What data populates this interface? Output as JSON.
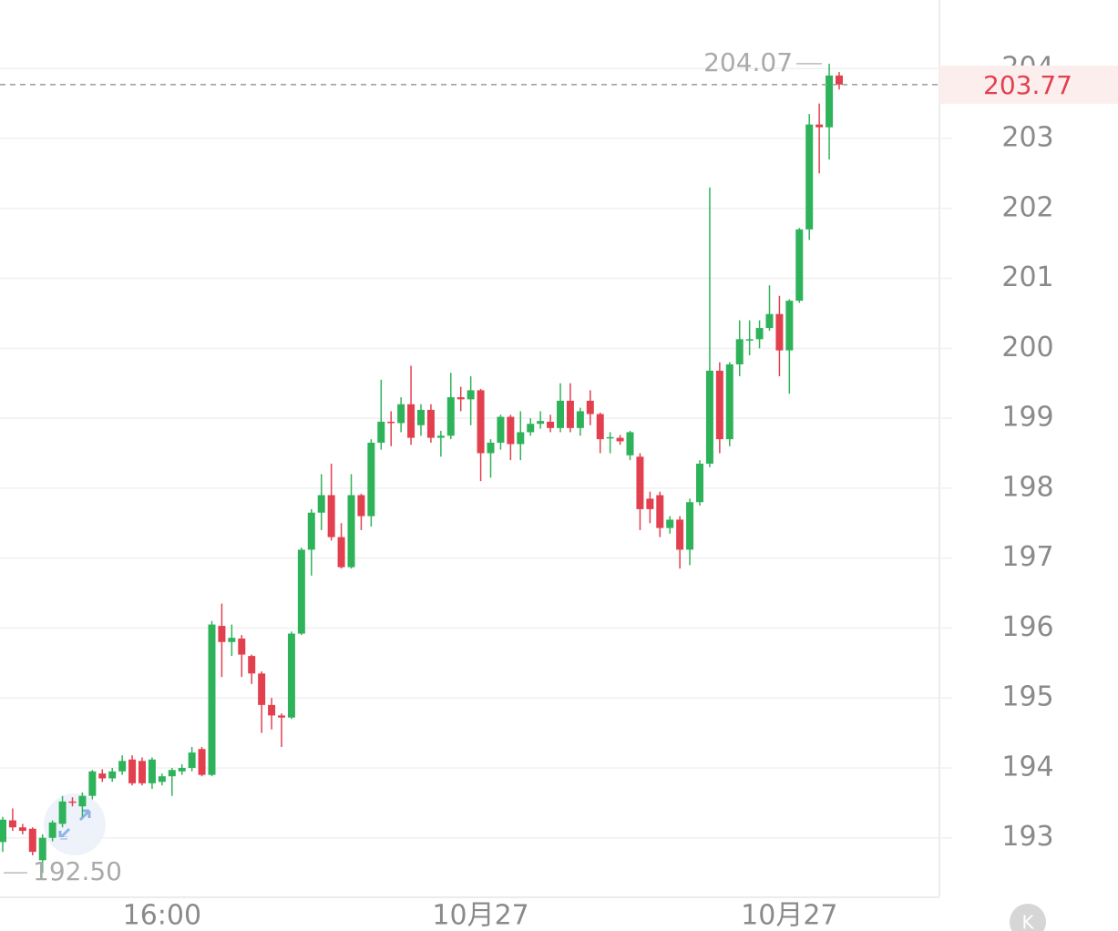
{
  "chart_data": {
    "type": "candlestick",
    "categories": [
      null,
      null,
      null,
      null,
      null,
      null,
      null,
      null,
      null,
      null,
      null,
      null,
      null,
      null,
      null,
      null,
      "16:00",
      null,
      null,
      null,
      null,
      null,
      null,
      null,
      null,
      null,
      null,
      null,
      null,
      null,
      null,
      null,
      null,
      null,
      null,
      null,
      null,
      null,
      null,
      null,
      null,
      null,
      null,
      null,
      null,
      null,
      null,
      null,
      "10月27",
      null,
      null,
      null,
      null,
      null,
      null,
      null,
      null,
      null,
      null,
      null,
      null,
      null,
      null,
      null,
      null,
      null,
      null,
      null,
      null,
      null,
      null,
      null,
      null,
      null,
      null,
      null,
      null,
      null,
      null,
      "10月27",
      null,
      null,
      null,
      null,
      null
    ],
    "open": [
      192.94,
      193.25,
      193.15,
      193.13,
      192.68,
      193.0,
      193.2,
      193.52,
      193.45,
      193.6,
      193.92,
      193.85,
      193.95,
      194.12,
      194.1,
      193.78,
      193.8,
      193.88,
      193.95,
      194.0,
      194.27,
      193.9,
      196.03,
      195.8,
      195.85,
      195.6,
      195.35,
      194.9,
      194.75,
      194.72,
      195.92,
      197.12,
      197.65,
      197.9,
      197.3,
      196.87,
      197.9,
      197.6,
      198.65,
      198.95,
      198.93,
      199.2,
      198.9,
      199.12,
      198.72,
      198.75,
      199.3,
      199.27,
      199.4,
      198.5,
      198.65,
      199.02,
      198.63,
      198.8,
      198.92,
      198.95,
      198.86,
      199.25,
      198.86,
      199.25,
      199.06,
      198.72,
      198.72,
      198.47,
      198.45,
      197.85,
      197.9,
      197.43,
      197.55,
      197.12,
      197.8,
      198.35,
      199.68,
      198.7,
      199.77,
      200.11,
      200.13,
      200.29,
      200.49,
      199.97,
      200.68,
      201.7,
      203.2,
      203.16,
      203.9
    ],
    "high": [
      193.3,
      193.42,
      193.2,
      193.15,
      193.05,
      193.25,
      193.6,
      193.58,
      193.65,
      193.97,
      193.98,
      194.0,
      194.18,
      194.18,
      194.15,
      194.15,
      193.92,
      194.0,
      194.05,
      194.3,
      194.3,
      196.1,
      196.35,
      196.05,
      195.9,
      195.62,
      195.38,
      195.0,
      194.78,
      195.95,
      197.15,
      197.7,
      198.2,
      198.35,
      197.5,
      198.2,
      197.92,
      198.7,
      199.55,
      199.1,
      199.3,
      199.75,
      199.2,
      199.2,
      198.82,
      199.65,
      199.45,
      199.6,
      199.42,
      198.7,
      199.05,
      199.05,
      199.1,
      199.0,
      199.1,
      199.05,
      199.5,
      199.5,
      199.15,
      199.4,
      199.08,
      198.8,
      198.76,
      198.82,
      198.5,
      197.95,
      197.95,
      197.6,
      197.6,
      197.85,
      198.4,
      202.3,
      199.8,
      199.8,
      200.4,
      200.4,
      200.4,
      200.9,
      200.75,
      200.7,
      201.72,
      203.35,
      203.5,
      204.07,
      203.95
    ],
    "low": [
      192.8,
      193.1,
      193.05,
      192.75,
      192.5,
      192.95,
      193.15,
      193.45,
      193.3,
      193.55,
      193.8,
      193.8,
      193.9,
      193.75,
      193.75,
      193.7,
      193.75,
      193.6,
      193.9,
      193.95,
      193.88,
      193.88,
      195.3,
      195.6,
      195.3,
      195.2,
      194.5,
      194.55,
      194.3,
      194.7,
      195.9,
      196.75,
      197.4,
      197.25,
      196.85,
      196.85,
      197.4,
      197.45,
      198.55,
      198.6,
      198.8,
      198.62,
      198.75,
      198.65,
      198.45,
      198.7,
      199.1,
      198.9,
      198.1,
      198.15,
      198.55,
      198.4,
      198.4,
      198.75,
      198.85,
      198.8,
      198.8,
      198.8,
      198.75,
      198.9,
      198.5,
      198.5,
      198.62,
      198.4,
      197.4,
      197.5,
      197.3,
      197.35,
      196.85,
      196.9,
      197.75,
      198.3,
      198.5,
      198.6,
      199.6,
      199.9,
      200.0,
      200.25,
      199.6,
      199.35,
      200.65,
      201.55,
      202.5,
      202.7,
      203.7
    ],
    "close": [
      193.26,
      193.15,
      193.1,
      192.8,
      193.0,
      193.22,
      193.52,
      193.5,
      193.6,
      193.95,
      193.85,
      193.95,
      194.1,
      193.78,
      193.78,
      194.12,
      193.88,
      193.97,
      194.0,
      194.22,
      193.9,
      196.05,
      195.8,
      195.86,
      195.62,
      195.35,
      194.9,
      194.75,
      194.72,
      195.92,
      197.12,
      197.65,
      197.9,
      197.3,
      196.87,
      197.9,
      197.6,
      198.65,
      198.95,
      198.93,
      199.2,
      198.72,
      199.12,
      198.72,
      198.75,
      199.3,
      199.27,
      199.4,
      198.5,
      198.65,
      199.02,
      198.63,
      198.8,
      198.92,
      198.96,
      198.86,
      199.25,
      198.86,
      199.1,
      199.06,
      198.7,
      198.73,
      198.67,
      198.8,
      197.7,
      197.7,
      197.43,
      197.55,
      197.12,
      197.8,
      198.35,
      199.68,
      198.7,
      199.77,
      200.13,
      200.13,
      200.29,
      200.49,
      199.97,
      200.68,
      201.7,
      203.2,
      203.16,
      203.9,
      203.77
    ],
    "up_color": "#2fb35a",
    "down_color": "#e2404f",
    "ylim": [
      192.15,
      204.98
    ],
    "yticks": [
      193,
      194,
      195,
      196,
      197,
      198,
      199,
      200,
      201,
      202,
      203,
      204
    ],
    "grid": true,
    "max_label": "204.07",
    "min_label": "192.50",
    "last_price_label": "203.77",
    "icon_label": "K"
  }
}
